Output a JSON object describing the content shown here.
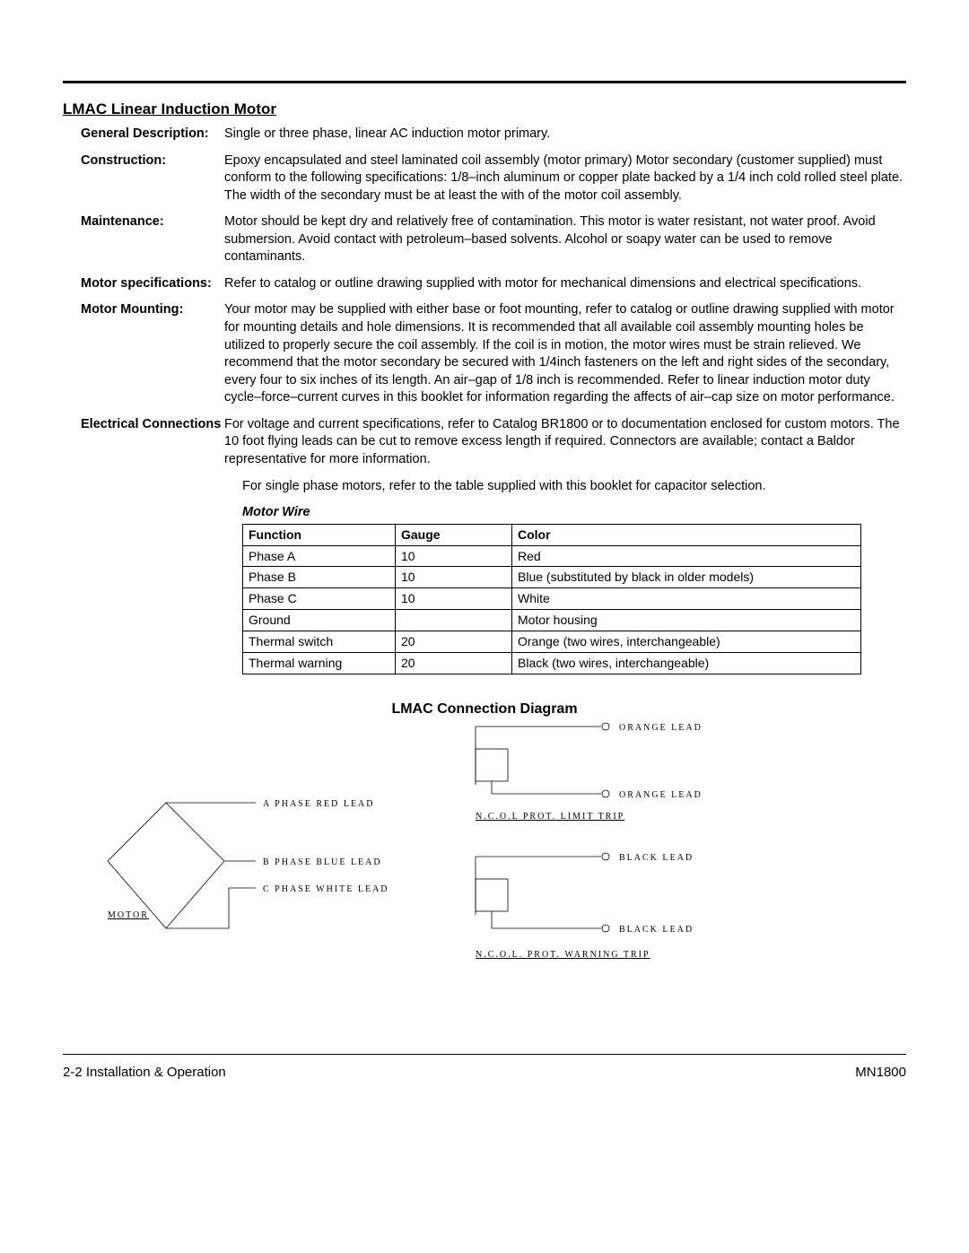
{
  "title": "LMAC Linear Induction Motor",
  "specs": {
    "general_description": {
      "label": "General Description:",
      "value": "Single or three phase, linear AC induction motor primary."
    },
    "construction": {
      "label": "Construction:",
      "value": "Epoxy encapsulated and steel laminated coil assembly (motor primary) Motor secondary (customer supplied) must conform to the following specifications: 1/8–inch aluminum or copper plate backed by a 1/4 inch cold rolled steel plate.  The width of the secondary must be at least the with of the motor coil assembly."
    },
    "maintenance": {
      "label": "Maintenance:",
      "value": "Motor should be kept dry and relatively free of contamination.  This motor is water resistant, not water proof.  Avoid submersion.  Avoid contact with petroleum–based solvents.  Alcohol or soapy water can be used to remove contaminants."
    },
    "motor_specifications": {
      "label": "Motor specifications:",
      "value": "Refer to catalog or outline drawing supplied with motor for mechanical dimensions and electrical specifications."
    },
    "motor_mounting": {
      "label": "Motor Mounting:",
      "value": "Your motor may be supplied with either base or foot mounting, refer to catalog or outline drawing supplied with motor for mounting details and hole dimensions.  It is recommended that all available coil assembly mounting holes be utilized to properly secure the coil assembly.  If the coil is in motion, the motor wires must be strain relieved. We recommend that the motor secondary be secured with 1/4inch fasteners on the left and right sides of the secondary, every four to six inches of its length.  An air–gap of 1/8 inch is recommended.  Refer to linear induction motor duty cycle–force–current curves in this booklet for information regarding the affects of air–cap size on motor performance."
    },
    "electrical_connections": {
      "label": "Electrical Connections",
      "value": "For voltage and current specifications, refer to Catalog BR1800 or to documentation enclosed for custom motors.  The 10 foot flying leads can be cut to remove excess length if required.  Connectors are available; contact a Baldor representative for more information."
    },
    "single_phase_note": "For single phase motors, refer to the table supplied with this booklet for capacitor selection."
  },
  "wire_table": {
    "heading": "Motor Wire",
    "columns": [
      "Function",
      "Gauge",
      "Color"
    ],
    "rows": [
      [
        "Phase A",
        "10",
        "Red"
      ],
      [
        "Phase B",
        "10",
        "Blue (substituted by black in older models)"
      ],
      [
        "Phase C",
        "10",
        "White"
      ],
      [
        "Ground",
        "",
        "Motor housing"
      ],
      [
        "Thermal switch",
        "20",
        "Orange (two wires, interchangeable)"
      ],
      [
        "Thermal warning",
        "20",
        "Black (two wires, interchangeable)"
      ]
    ]
  },
  "diagram": {
    "title": "LMAC Connection Diagram",
    "labels": {
      "a_phase": "A  PHASE RED LEAD",
      "b_phase": "B  PHASE BLUE LEAD",
      "c_phase": "C  PHASE WHITE LEAD",
      "motor": "MOTOR",
      "orange_lead": "ORANGE  LEAD",
      "black_lead": "BLACK  LEAD",
      "limit_trip": "N.C.O.L  PROT.  LIMIT  TRIP",
      "warning_trip": "N.C.O.L.  PROT.  WARNING  TRIP"
    },
    "font_size": 10,
    "stroke": "#000000"
  },
  "footer": {
    "left": "2-2 Installation & Operation",
    "right": "MN1800"
  }
}
